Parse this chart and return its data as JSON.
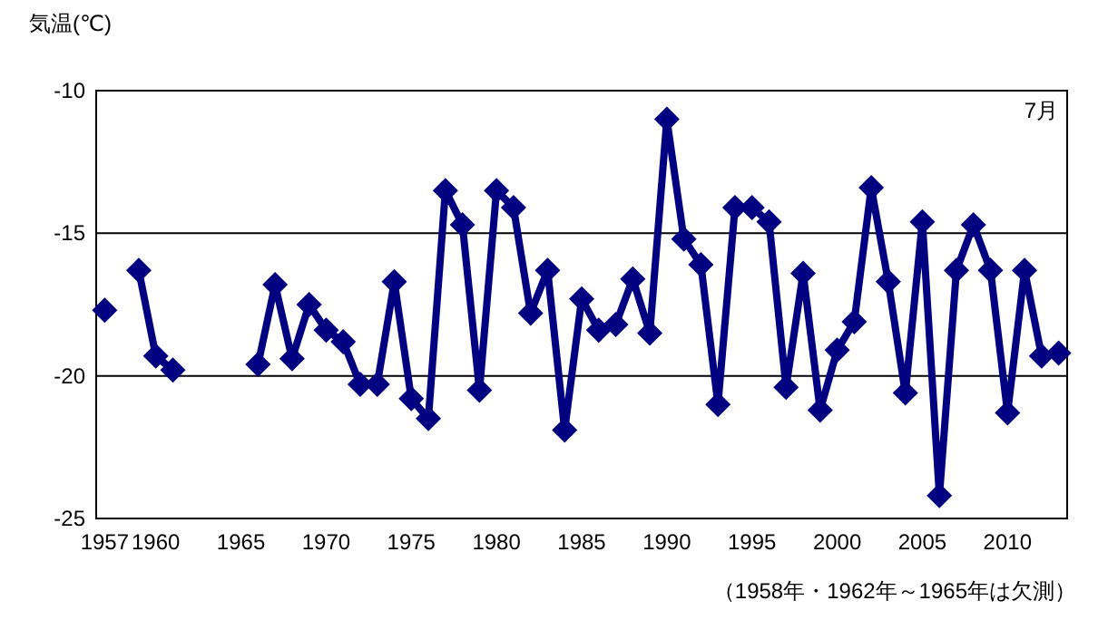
{
  "chart_data": {
    "type": "line",
    "ylabel": "気温(℃)",
    "annotations": [
      "7月",
      "（1958年・1962年～1965年は欠測）"
    ],
    "x": [
      1957,
      1958,
      1959,
      1960,
      1961,
      1962,
      1963,
      1964,
      1965,
      1966,
      1967,
      1968,
      1969,
      1970,
      1971,
      1972,
      1973,
      1974,
      1975,
      1976,
      1977,
      1978,
      1979,
      1980,
      1981,
      1982,
      1983,
      1984,
      1985,
      1986,
      1987,
      1988,
      1989,
      1990,
      1991,
      1992,
      1993,
      1994,
      1995,
      1996,
      1997,
      1998,
      1999,
      2000,
      2001,
      2002,
      2003,
      2004,
      2005,
      2006,
      2007,
      2008,
      2009,
      2010,
      2011,
      2012,
      2013
    ],
    "series": [
      {
        "color": "#000080",
        "values": [
          -17.7,
          null,
          -16.3,
          -19.3,
          -19.8,
          null,
          null,
          null,
          null,
          -19.6,
          -16.8,
          -19.4,
          -17.5,
          -18.4,
          -18.8,
          -20.3,
          -20.3,
          -16.7,
          -20.8,
          -21.5,
          -13.5,
          -14.7,
          -20.5,
          -13.5,
          -14.1,
          -17.8,
          -16.3,
          -21.9,
          -17.3,
          -18.4,
          -18.2,
          -16.6,
          -18.5,
          -11.0,
          -15.2,
          -16.1,
          -21.0,
          -14.1,
          -14.1,
          -14.6,
          -20.4,
          -16.4,
          -21.2,
          -19.1,
          -18.1,
          -13.4,
          -16.7,
          -20.6,
          -14.6,
          -24.2,
          -16.3,
          -14.7,
          -16.3,
          -21.3,
          -16.3,
          -19.3,
          -19.2
        ]
      }
    ],
    "xlim": [
      1956.5,
      2013.5
    ],
    "xticks": [
      1957,
      1960,
      1965,
      1970,
      1975,
      1980,
      1985,
      1990,
      1995,
      2000,
      2005,
      2010
    ],
    "ylim": [
      -25,
      -10
    ],
    "yticks": [
      -25,
      -20,
      -15,
      -10
    ],
    "grid": "y",
    "marker": "diamond",
    "line_style": "solid"
  }
}
